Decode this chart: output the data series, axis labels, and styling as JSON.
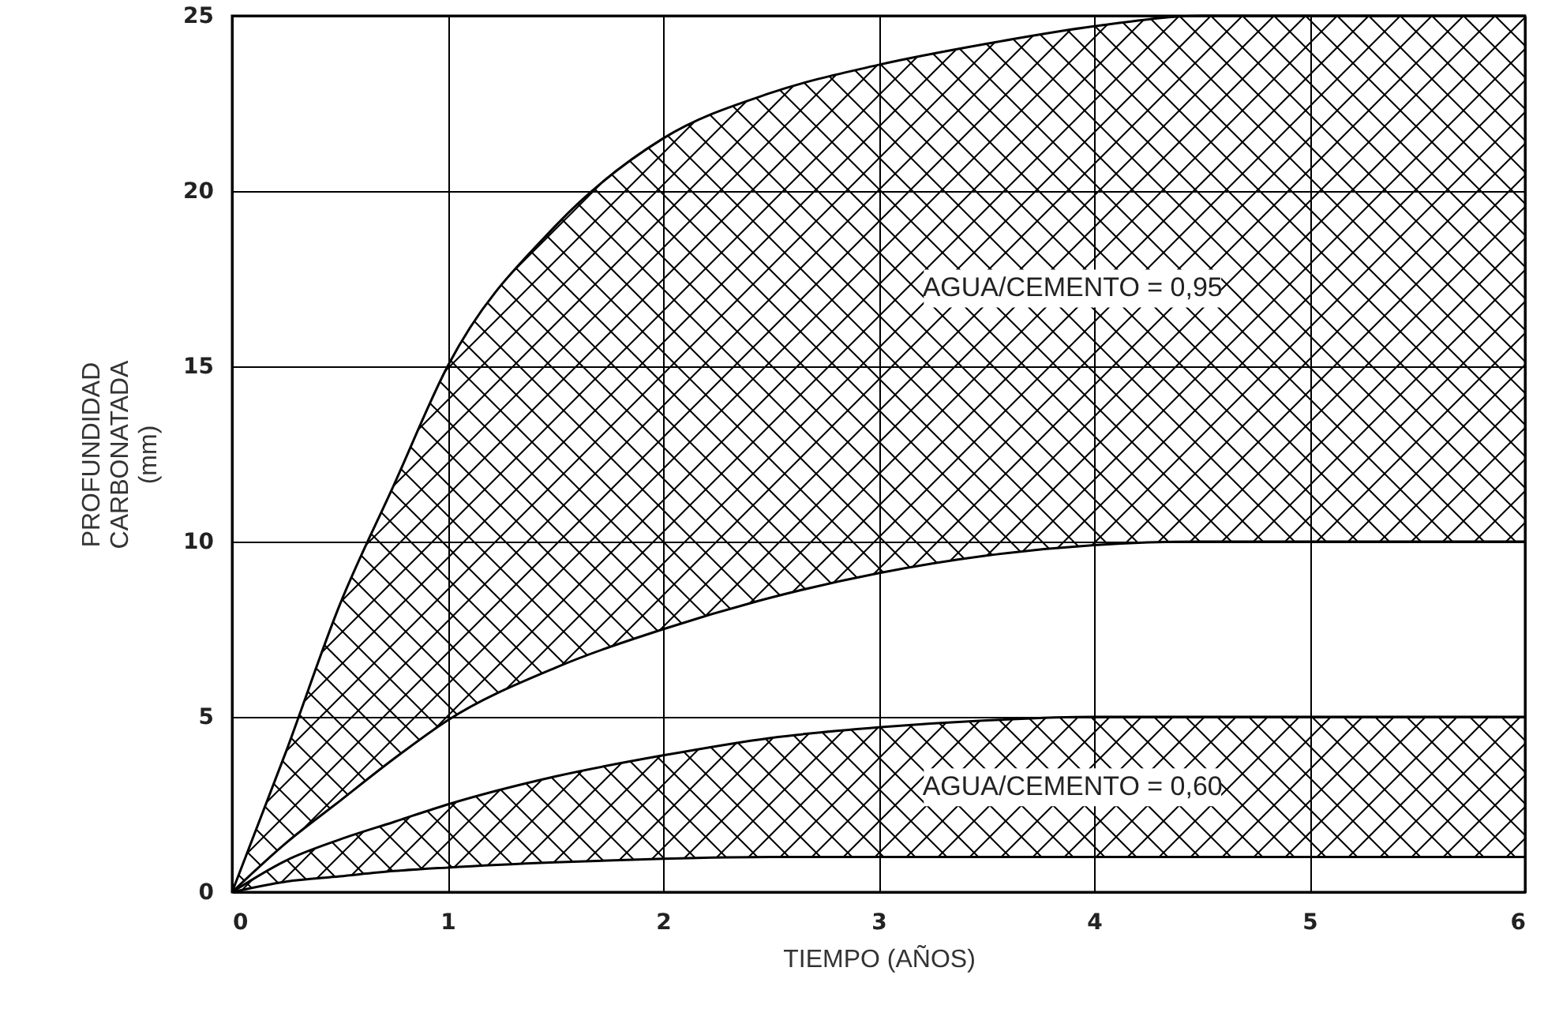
{
  "chart_data": {
    "type": "area",
    "xlabel": "TIEMPO (AÑOS)",
    "ylabel": "PROFUNDIDAD CARBONATADA (mm)",
    "x": [
      0,
      0.25,
      0.5,
      0.75,
      1,
      1.5,
      2,
      2.5,
      3,
      3.5,
      4,
      4.5,
      5,
      5.5,
      6
    ],
    "xlim": [
      0,
      6
    ],
    "xticks": [
      0,
      1,
      2,
      3,
      4,
      5,
      6
    ],
    "ylim": [
      0,
      25
    ],
    "yticks": [
      0,
      5,
      10,
      15,
      20,
      25
    ],
    "grid": true,
    "series": [
      {
        "name": "AGUA/CEMENTO = 0,95",
        "color": "#000000",
        "values": [
          0,
          4,
          8.2,
          11.6,
          15,
          19,
          21.5,
          22.8,
          23.6,
          24.2,
          24.7,
          25,
          25,
          25,
          25
        ]
      },
      {
        "type": "line",
        "color": "#000000",
        "values": [
          0,
          1.4,
          2.6,
          3.8,
          4.9,
          6.4,
          7.5,
          8.4,
          9.1,
          9.6,
          9.9,
          10,
          10,
          10,
          10
        ]
      },
      {
        "name": "AGUA/CEMENTO = 0,60",
        "color": "#000000",
        "values": [
          0,
          0.9,
          1.5,
          2,
          2.5,
          3.3,
          3.9,
          4.4,
          4.7,
          4.9,
          5,
          5,
          5,
          5,
          5
        ]
      },
      {
        "type": "line",
        "color": "#000000",
        "values": [
          0,
          0.3,
          0.45,
          0.6,
          0.7,
          0.85,
          0.95,
          1,
          1,
          1,
          1,
          1,
          1,
          1,
          1
        ]
      }
    ]
  }
}
